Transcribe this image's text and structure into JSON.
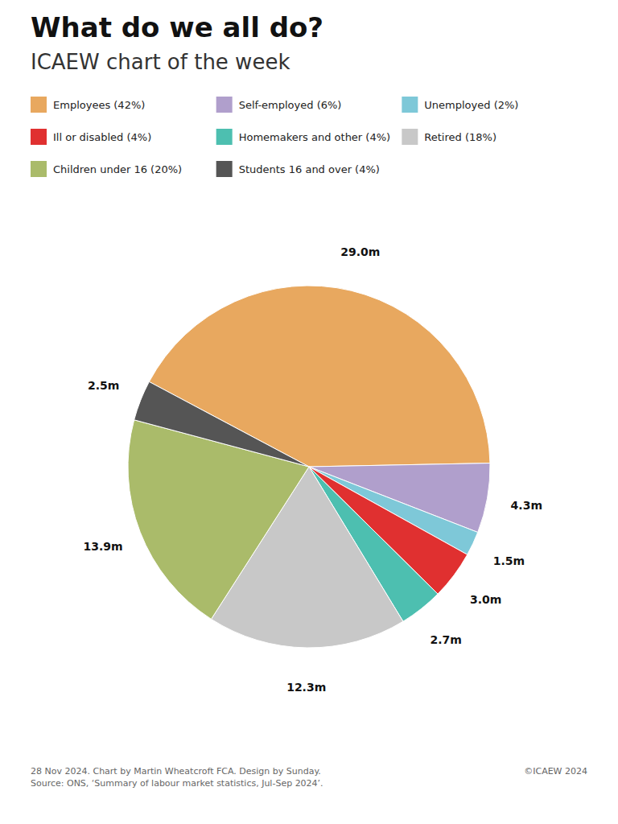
{
  "chart_data": {
    "type": "pie",
    "title": "What do we all do?",
    "subtitle": "ICAEW chart of the week",
    "categories": [
      "Employees (42%)",
      "Self-employed (6%)",
      "Unemployed (2%)",
      "Ill or disabled (4%)",
      "Homemakers and other (4%)",
      "Retired (18%)",
      "Children under 16 (20%)",
      "Students 16 and over (4%)"
    ],
    "values": [
      29.0,
      4.3,
      1.5,
      3.0,
      2.7,
      12.3,
      13.9,
      2.5
    ],
    "value_labels": [
      "29.0m",
      "4.3m",
      "1.5m",
      "3.0m",
      "2.7m",
      "12.3m",
      "13.9m",
      "2.5m"
    ],
    "colors": [
      "#E8A85F",
      "#B09FCC",
      "#7EC8D8",
      "#E03030",
      "#4DBFB0",
      "#C8C8C8",
      "#AABB6A",
      "#555555"
    ],
    "data_labels": true,
    "legend": "top",
    "annotations": [
      "28 Nov 2024.   Chart by Martin Wheatcroft FCA. Design by Sunday.\nSource: ONS, ‘Summary of labour market statistics, Jul-Sep 2024’.",
      "©ICAEW 2024"
    ]
  }
}
